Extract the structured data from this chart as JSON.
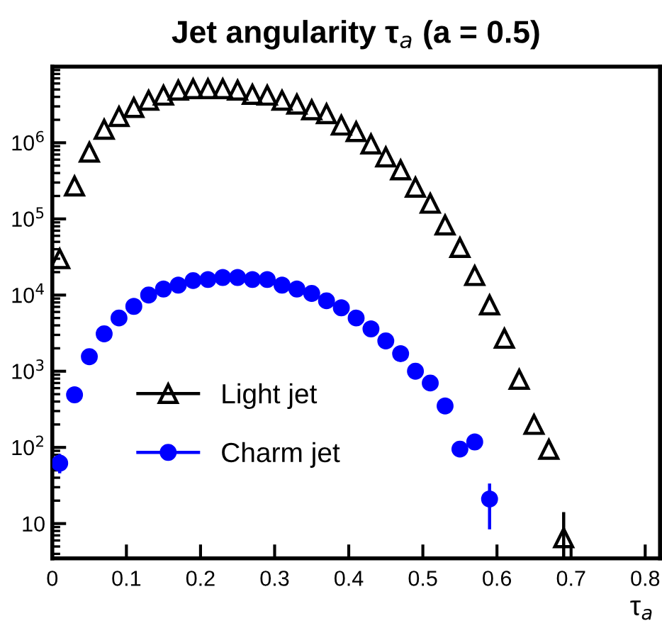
{
  "chart_data": {
    "type": "scatter",
    "title": "Jet angularity τ$_{a}$ (a = 0.5)",
    "xlabel": "τ$_{a}$",
    "xlim": [
      0,
      0.82
    ],
    "xticks": [
      0,
      0.1,
      0.2,
      0.3,
      0.4,
      0.5,
      0.6,
      0.7,
      0.8
    ],
    "ylim": [
      3.5,
      10000000
    ],
    "yticks": [
      10,
      {
        "value": 100,
        "label": "10$^{2}$"
      },
      {
        "value": 1000,
        "label": "10$^{3}$"
      },
      {
        "value": 10000,
        "label": "10$^{4}$"
      },
      {
        "value": 100000,
        "label": "10$^{5}$"
      },
      {
        "value": 1000000,
        "label": "10$^{6}$"
      }
    ],
    "log": "y",
    "grid": false,
    "legend": "left",
    "series": [
      {
        "name": "Light jet",
        "color": "#000000",
        "marker": "triangle",
        "x": [
          0.01,
          0.03,
          0.05,
          0.07,
          0.09,
          0.11,
          0.13,
          0.15,
          0.17,
          0.19,
          0.21,
          0.23,
          0.25,
          0.27,
          0.29,
          0.31,
          0.33,
          0.35,
          0.37,
          0.39,
          0.41,
          0.43,
          0.45,
          0.47,
          0.49,
          0.51,
          0.53,
          0.55,
          0.57,
          0.59,
          0.61,
          0.63,
          0.65,
          0.67,
          0.69
        ],
        "values": [
          30000,
          270000,
          750000,
          1500000,
          2200000,
          2900000,
          3600000,
          4200000,
          4900000,
          5100000,
          5100000,
          5100000,
          4900000,
          4300000,
          4200000,
          3600000,
          3200000,
          2700000,
          2400000,
          1700000,
          1400000,
          960000,
          650000,
          440000,
          260000,
          160000,
          83000,
          42000,
          18000,
          7400,
          2700,
          780,
          200,
          94,
          6.5
        ],
        "errors": [
          null,
          null,
          null,
          null,
          null,
          null,
          null,
          null,
          null,
          null,
          null,
          null,
          null,
          null,
          null,
          null,
          null,
          null,
          null,
          null,
          null,
          null,
          null,
          null,
          null,
          null,
          null,
          null,
          null,
          null,
          null,
          null,
          null,
          null,
          [
            3.6,
            13.5
          ]
        ]
      },
      {
        "name": "Charm jet",
        "color": "#0000ff",
        "marker": "circle",
        "x": [
          0.01,
          0.03,
          0.05,
          0.07,
          0.09,
          0.11,
          0.13,
          0.15,
          0.17,
          0.19,
          0.21,
          0.23,
          0.25,
          0.27,
          0.29,
          0.31,
          0.33,
          0.35,
          0.37,
          0.39,
          0.41,
          0.43,
          0.45,
          0.47,
          0.49,
          0.51,
          0.53,
          0.55,
          0.57,
          0.59
        ],
        "values": [
          62,
          490,
          1550,
          3100,
          5000,
          7100,
          10000,
          12000,
          13500,
          15500,
          16000,
          17000,
          17000,
          16000,
          16000,
          13500,
          12000,
          10500,
          8400,
          6800,
          5000,
          3600,
          2500,
          1700,
          1000,
          700,
          350,
          95,
          118,
          21
        ],
        "errors": [
          [
            48,
            78
          ],
          null,
          null,
          null,
          null,
          null,
          null,
          null,
          null,
          null,
          null,
          null,
          null,
          null,
          null,
          null,
          null,
          null,
          null,
          null,
          null,
          null,
          null,
          null,
          null,
          null,
          null,
          [
            78,
            112
          ],
          [
            100,
            135
          ],
          [
            8.8,
            32
          ]
        ]
      }
    ]
  }
}
